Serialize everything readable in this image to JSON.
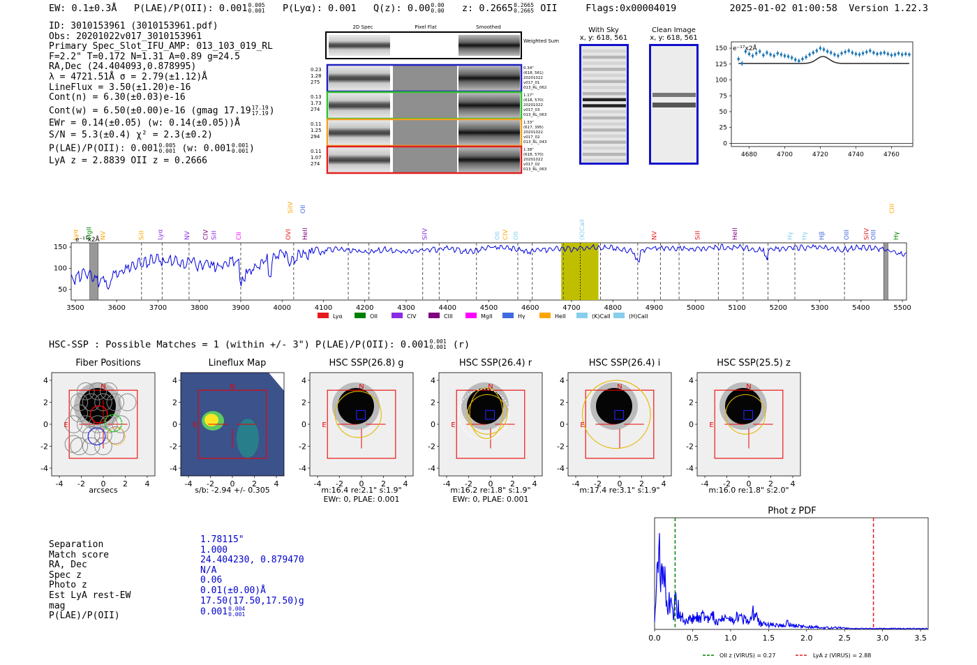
{
  "header": {
    "ew": "EW: 0.1±0.3Å",
    "plae_label": "P(LAE)/P(OII): 0.001",
    "plae_hi": "0.005",
    "plae_lo": "0.001",
    "plya": "P(Lyα): 0.001",
    "qz_label": "Q(z): 0.00",
    "qz_hi": "0.00",
    "qz_lo": "0.00",
    "z_label": "z: 0.2665",
    "z_hi": "0.2665",
    "z_lo": "0.2665",
    "z_line": "OII",
    "flags": "Flags:0x00004019",
    "timestamp": "2025-01-02 01:00:58",
    "version": "Version 1.22.3"
  },
  "info": {
    "lines": [
      "ID: 3010153961 (3010153961.pdf)",
      "Obs: 20201022v017_3010153961",
      "Primary Spec_Slot_IFU_AMP: 013_103_019_RL",
      "F=2.2\"  T=0.172  N=1.31  A=0.89  g=24.5",
      "RA,Dec (24.404093,0.878995)",
      "λ = 4721.51Å  σ = 2.79(±1.12)Å",
      "LineFlux = 3.50(±1.20)e-16",
      "Cont(n) = 6.30(±0.03)e-16"
    ],
    "contw": "Cont(w) = 6.50(±0.00)e-16 (gmag 17.19",
    "contw_hi": "17.19",
    "contw_lo": "17.19",
    "ewr": "EWr = 0.14(±0.05) (w: 0.14(±0.05))Å",
    "sn": "S/N = 5.3(±0.4)  χ² = 2.3(±0.2)",
    "plae": "P(LAE)/P(OII): 0.001",
    "plae_hi": "0.005",
    "plae_lo": "0.001",
    "plae_w": "(w: 0.001",
    "plae_w_hi": "0.001",
    "plae_w_lo": "0.001",
    "lyaz": "LyA z = 2.8839  OII z = 0.2666"
  },
  "cutouts": {
    "headers": [
      "2D Spec",
      "Pixel Flat",
      "Smoothed"
    ],
    "weighted": "Weighted Sum",
    "rows": [
      {
        "left": [
          "0.23",
          "1.28",
          "275"
        ],
        "right": [
          "0.34\"",
          "(618, 561)",
          "20201022",
          "v017_01",
          "013_RL_062"
        ],
        "color": "#2020c0"
      },
      {
        "left": [
          "0.13",
          "1.73",
          "274"
        ],
        "right": [
          "1.17\"",
          "(618, 570)",
          "20201022",
          "v017_03",
          "013_RL_063"
        ],
        "color": "#30c030"
      },
      {
        "left": [
          "0.11",
          "1.25",
          "294"
        ],
        "right": [
          "1.33\"",
          "(617, 395)",
          "20201022",
          "v017_02",
          "013_RL_043"
        ],
        "color": "#f0a020"
      },
      {
        "left": [
          "0.11",
          "1.07",
          "274"
        ],
        "right": [
          "1.38\"",
          "(618, 570)",
          "20201022",
          "v017_02",
          "013_RL_063"
        ],
        "color": "#e02020"
      }
    ]
  },
  "sky": {
    "with_sky_title": "With Sky",
    "with_sky_coords": "x, y: 618, 561",
    "clean_title": "Clean Image",
    "clean_coords": "x, y: 618, 561"
  },
  "zoom_chart": {
    "ylabel": "e⁻¹⁷x2Å",
    "yticks": [
      "150",
      "125",
      "100",
      "75",
      "50",
      "25",
      "0"
    ],
    "xticks": [
      "4680",
      "4700",
      "4720",
      "4740",
      "4760"
    ]
  },
  "chart_data": [
    {
      "type": "scatter",
      "title": "",
      "ylabel": "e-17 x2Å",
      "xlim": [
        4670,
        4772
      ],
      "ylim": [
        -5,
        160
      ],
      "x": [
        4674,
        4676,
        4678,
        4680,
        4682,
        4684,
        4686,
        4688,
        4690,
        4692,
        4694,
        4696,
        4698,
        4700,
        4702,
        4704,
        4706,
        4708,
        4710,
        4712,
        4714,
        4716,
        4718,
        4720,
        4722,
        4724,
        4726,
        4728,
        4730,
        4732,
        4734,
        4736,
        4738,
        4740,
        4742,
        4744,
        4746,
        4748,
        4750,
        4752,
        4754,
        4756,
        4758,
        4760,
        4762,
        4764,
        4766,
        4768,
        4770
      ],
      "values": [
        133,
        126,
        145,
        141,
        138,
        142,
        145,
        139,
        143,
        140,
        138,
        142,
        140,
        138,
        137,
        135,
        132,
        130,
        133,
        136,
        140,
        143,
        146,
        150,
        148,
        145,
        143,
        140,
        138,
        142,
        144,
        146,
        143,
        141,
        140,
        142,
        144,
        146,
        143,
        141,
        142,
        143,
        141,
        139,
        140,
        142,
        140,
        141,
        140
      ],
      "model": "flat continuum ~126 with Gaussian bump to ~137 at 4721"
    },
    {
      "type": "line",
      "title": "",
      "ylabel": "e-17 x2Å",
      "xlim": [
        3490,
        5510
      ],
      "ylim": [
        25,
        160
      ],
      "xticks": [
        3500,
        3600,
        3700,
        3800,
        3900,
        4000,
        4100,
        4200,
        4300,
        4400,
        4500,
        4600,
        4700,
        4800,
        4900,
        5000,
        5100,
        5200,
        5300,
        5400,
        5500
      ],
      "yticks": [
        50,
        100,
        150
      ],
      "x": [
        3500,
        3520,
        3540,
        3560,
        3580,
        3600,
        3620,
        3640,
        3660,
        3680,
        3700,
        3720,
        3740,
        3760,
        3780,
        3800,
        3820,
        3840,
        3860,
        3880,
        3900,
        3920,
        3940,
        3960,
        3980,
        4000,
        4020,
        4040,
        4060,
        4080,
        4100,
        4150,
        4200,
        4250,
        4300,
        4350,
        4400,
        4450,
        4500,
        4550,
        4600,
        4650,
        4700,
        4750,
        4800,
        4850,
        4900,
        4950,
        5000,
        5050,
        5100,
        5150,
        5200,
        5250,
        5300,
        5350,
        5400,
        5450,
        5500
      ],
      "values": [
        75,
        88,
        82,
        65,
        80,
        90,
        95,
        110,
        112,
        118,
        122,
        115,
        120,
        112,
        118,
        105,
        110,
        100,
        110,
        115,
        112,
        95,
        108,
        120,
        130,
        140,
        115,
        135,
        128,
        140,
        148,
        142,
        138,
        145,
        140,
        143,
        146,
        138,
        150,
        148,
        140,
        145,
        145,
        150,
        148,
        140,
        148,
        147,
        145,
        150,
        150,
        143,
        145,
        148,
        150,
        143,
        150,
        145,
        132
      ],
      "lines": [
        "Lyα",
        "MgII",
        "NV",
        "SiII",
        "Lyα",
        "NV",
        "CIV",
        "SiII",
        "CII",
        "OVI",
        "HeII",
        "SiIV",
        "OII",
        "CIV",
        "OII",
        "(K)CaII",
        "NV",
        "SiII",
        "HeII",
        "Hγ",
        "Hγ",
        "Hβ",
        "OIII",
        "SiIV",
        "OIII",
        "Hγ",
        "CIII",
        "SiIV",
        "OII",
        "CIII"
      ],
      "highlight_range": [
        4675,
        4765
      ],
      "legend": [
        "Lyα",
        "OII",
        "CIV",
        "CIII",
        "MgII",
        "Hγ",
        "HeII",
        "(K)CaII",
        "(H)CaII"
      ]
    },
    {
      "type": "line",
      "title": "Phot z PDF",
      "xlim": [
        0,
        3.6
      ],
      "ylim": [
        0,
        1
      ],
      "xticks": [
        0.0,
        0.5,
        1.0,
        1.5,
        2.0,
        2.5,
        3.0,
        3.5
      ],
      "x": [
        0.02,
        0.05,
        0.08,
        0.1,
        0.12,
        0.15,
        0.18,
        0.2,
        0.25,
        0.27,
        0.3,
        0.35,
        0.4,
        0.45,
        0.5,
        0.6,
        0.7,
        0.75,
        0.8,
        0.9,
        1.0,
        1.1,
        1.2,
        1.25,
        1.3,
        1.4,
        1.5,
        1.6,
        1.7,
        1.75,
        1.8,
        1.9,
        2.0,
        2.1,
        2.2,
        2.4,
        2.6,
        2.8,
        3.0,
        3.2,
        3.4,
        3.6
      ],
      "values": [
        0.4,
        0.85,
        0.7,
        0.45,
        0.6,
        0.45,
        0.35,
        0.3,
        0.2,
        0.5,
        0.25,
        0.15,
        0.12,
        0.1,
        0.14,
        0.16,
        0.1,
        0.2,
        0.08,
        0.12,
        0.1,
        0.14,
        0.1,
        0.12,
        0.22,
        0.06,
        0.06,
        0.05,
        0.04,
        0.08,
        0.05,
        0.04,
        0.03,
        0.03,
        0.02,
        0.02,
        0.01,
        0.01,
        0.01,
        0.01,
        0.01,
        0.01
      ],
      "oii_z": 0.27,
      "lya_z": 2.88,
      "legend": [
        "OII z (VIRUS) = 0.27",
        "LyA z (VIRUS) = 2.88"
      ]
    }
  ],
  "spectrum_legend": [
    {
      "label": "Lyα",
      "color": "#e41a1c"
    },
    {
      "label": "OII",
      "color": "#008000"
    },
    {
      "label": "CIV",
      "color": "#8a2be2"
    },
    {
      "label": "CIII",
      "color": "#800080"
    },
    {
      "label": "MgII",
      "color": "#ff00ff"
    },
    {
      "label": "Hγ",
      "color": "#4169e1"
    },
    {
      "label": "HeII",
      "color": "#ffa500"
    },
    {
      "label": "(K)CaII",
      "color": "#87ceeb"
    },
    {
      "label": "(H)CaII",
      "color": "#87ceeb"
    }
  ],
  "spectrum_lines": [
    {
      "label": "Lyα",
      "color": "#ffa500",
      "x": 3505
    },
    {
      "label": "MgII",
      "color": "#008000",
      "x": 3538
    },
    {
      "label": "NV",
      "color": "#ffa500",
      "x": 3572
    },
    {
      "label": "SiII",
      "color": "#ffa500",
      "x": 3665
    },
    {
      "label": "Lyα",
      "color": "#8a2be2",
      "x": 3710
    },
    {
      "label": "NV",
      "color": "#8a2be2",
      "x": 3775
    },
    {
      "label": "CIV",
      "color": "#800080",
      "x": 3820
    },
    {
      "label": "SiII",
      "color": "#8a2be2",
      "x": 3840
    },
    {
      "label": "CII",
      "color": "#ff00ff",
      "x": 3900
    },
    {
      "label": "OVI",
      "color": "#e41a1c",
      "x": 4020
    },
    {
      "label": "SiIV",
      "color": "#ffa500",
      "x": 4025
    },
    {
      "label": "OII",
      "color": "#4169e1",
      "x": 4055
    },
    {
      "label": "HeII",
      "color": "#800080",
      "x": 4060
    },
    {
      "label": "SiIV",
      "color": "#8a2be2",
      "x": 4350
    },
    {
      "label": "OII",
      "color": "#87ceeb",
      "x": 4525
    },
    {
      "label": "CIV",
      "color": "#ffa500",
      "x": 4545
    },
    {
      "label": "OII",
      "color": "#87ceeb",
      "x": 4570
    },
    {
      "label": "(K)CaII",
      "color": "#87ceeb",
      "x": 4730
    },
    {
      "label": "NV",
      "color": "#e41a1c",
      "x": 4905
    },
    {
      "label": "SiII",
      "color": "#e41a1c",
      "x": 5010
    },
    {
      "label": "HeII",
      "color": "#800080",
      "x": 5100
    },
    {
      "label": "Hγ",
      "color": "#87ceeb",
      "x": 5233
    },
    {
      "label": "Hγ",
      "color": "#87ceeb",
      "x": 5268
    },
    {
      "label": "Hβ",
      "color": "#4169e1",
      "x": 5310
    },
    {
      "label": "OIII",
      "color": "#4169e1",
      "x": 5370
    },
    {
      "label": "SiIV",
      "color": "#e41a1c",
      "x": 5418
    },
    {
      "label": "OIII",
      "color": "#4169e1",
      "x": 5435
    },
    {
      "label": "Hγ",
      "color": "#008000",
      "x": 5490
    },
    {
      "label": "CIII",
      "color": "#ffa500",
      "x": 5480
    }
  ],
  "spectrum_units": "e⁻¹⁷x2Å",
  "hsc": {
    "title_prefix": "HSC-SSP : Possible Matches = 1 (within +/- 3\")  P(LAE)/P(OII): 0.001",
    "title_hi": "0.001",
    "title_lo": "0.001",
    "title_suffix": "(r)",
    "panels": [
      {
        "title": "Fiber Positions",
        "caption1": "arcsecs",
        "caption2": ""
      },
      {
        "title": "Lineflux Map",
        "caption1": "s/b: -2.94 +/- 0.305",
        "caption2": ""
      },
      {
        "title": "HSC SSP(26.8) g",
        "caption1": "m:16.4  re:2.1\"  s:1.9\"",
        "caption2": "EWr: 0, PLAE: 0.001"
      },
      {
        "title": "HSC SSP(26.4) r",
        "caption1": "m:16.2  re:1.8\"  s:1.9\"",
        "caption2": "EWr: 0, PLAE: 0.001"
      },
      {
        "title": "HSC SSP(26.4) i",
        "caption1": "m:17.4  re:3.1\"  s:1.9\"",
        "caption2": ""
      },
      {
        "title": "HSC SSP(25.5) z",
        "caption1": "m:16.0  re:1.8\"  s:2.0\"",
        "caption2": ""
      }
    ],
    "axis_ticks": [
      "4",
      "2",
      "0",
      "-2",
      "-4"
    ],
    "x_ticks": [
      "-4",
      "-2",
      "0",
      "2",
      "4"
    ],
    "n_label": "N",
    "e_label": "E"
  },
  "match": {
    "labels": [
      "Separation",
      "Match score",
      "RA, Dec",
      "Spec z",
      "Photo z",
      "Est LyA rest-EW",
      "mag",
      "P(LAE)/P(OII)"
    ],
    "values": [
      "1.78115\"",
      "1.000",
      "24.404230, 0.879470",
      "N/A",
      "0.06",
      "0.01(±0.00)Å",
      "17.50(17.50,17.50)g",
      "0.001"
    ],
    "plae_hi": "0.004",
    "plae_lo": "0.001"
  },
  "photz": {
    "title": "Phot z PDF",
    "legend_oii": "OII z (VIRUS) = 0.27",
    "legend_lya": "LyA z (VIRUS) = 2.88"
  }
}
